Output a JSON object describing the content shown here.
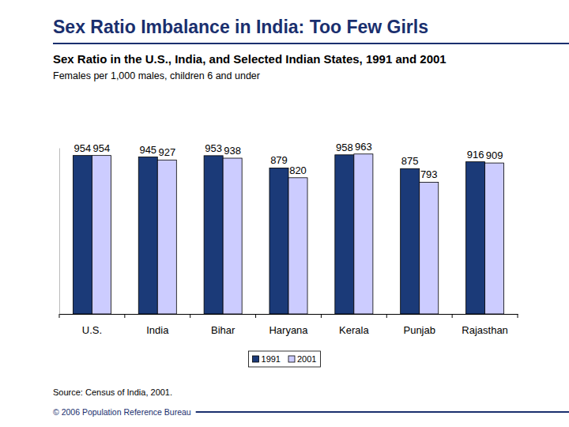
{
  "chart_data": {
    "type": "bar",
    "title": "Sex Ratio Imbalance in India: Too Few Girls",
    "subtitle": "Sex Ratio in the U.S., India, and Selected Indian States, 1991 and 2001",
    "y_label": "Females per 1,000 males, children 6 and under",
    "categories": [
      "U.S.",
      "India",
      "Bihar",
      "Haryana",
      "Kerala",
      "Punjab",
      "Rajasthan"
    ],
    "series": [
      {
        "name": "1991",
        "color": "#1b3a78",
        "values": [
          954,
          945,
          953,
          879,
          958,
          875,
          916
        ]
      },
      {
        "name": "2001",
        "color": "#ccccff",
        "values": [
          954,
          927,
          938,
          820,
          963,
          793,
          909
        ]
      }
    ],
    "ylim": [
      0,
      1000
    ],
    "data_labels": true,
    "tick_labels": "x",
    "legend": "bottom",
    "source": "Source: Census of India, 2001.",
    "footer": "© 2006 Population Reference Bureau"
  }
}
